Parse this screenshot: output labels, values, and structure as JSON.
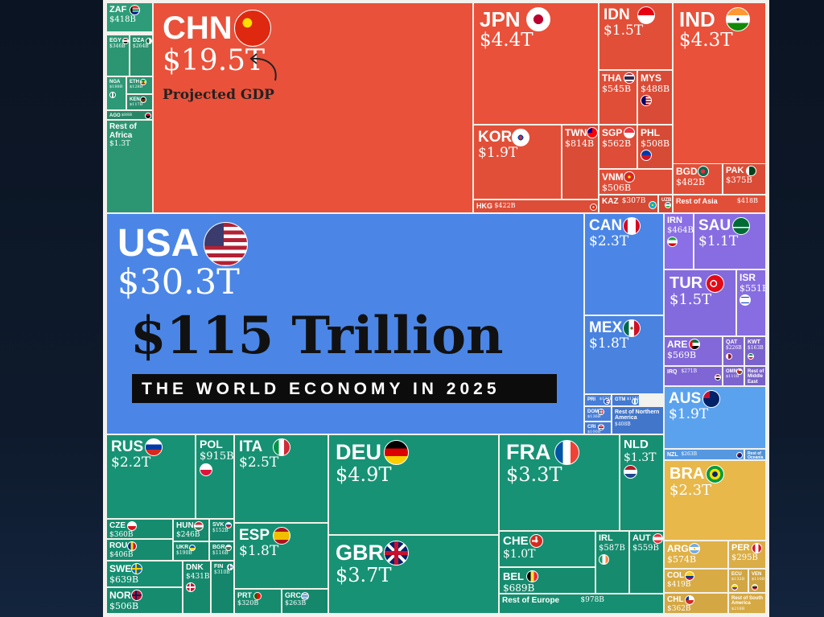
{
  "title": "$115 Trillion",
  "subtitle": "THE WORLD ECONOMY IN 2025",
  "annotation": "Projected GDP",
  "region_colors": {
    "asia": "#e9513a",
    "africa": "#2e9c78",
    "north_america": "#4b86e6",
    "europe": "#179274",
    "middle_east": "#8a6fe6",
    "oceania": "#5ba2ee",
    "south_america": "#e8b84a"
  },
  "chart_data": {
    "type": "treemap",
    "title": "$115 Trillion",
    "subtitle": "THE WORLD ECONOMY IN 2025",
    "value_unit": "USD",
    "cells": [
      {
        "code": "ZAF",
        "value": "$418B",
        "region": "africa",
        "flag": "flag-south-africa"
      },
      {
        "code": "EGY",
        "value": "$346B",
        "region": "africa",
        "flag": "flag-egypt"
      },
      {
        "code": "DZA",
        "value": "$264B",
        "region": "africa",
        "flag": "flag-algeria"
      },
      {
        "code": "NGA",
        "value": "$188B",
        "region": "africa",
        "flag": "flag-nigeria"
      },
      {
        "code": "ETH",
        "value": "$128B",
        "region": "africa",
        "flag": "flag-ethiopia"
      },
      {
        "code": "KEN",
        "value": "$117B",
        "region": "africa",
        "flag": "flag-kenya"
      },
      {
        "code": "AGO",
        "value": "$88B",
        "region": "africa",
        "flag": "flag-angola"
      },
      {
        "code": "Rest of Africa",
        "value": "$1.3T",
        "region": "africa"
      },
      {
        "code": "CHN",
        "value": "$19.5T",
        "region": "asia",
        "flag": "flag-china"
      },
      {
        "code": "JPN",
        "value": "$4.4T",
        "region": "asia",
        "flag": "flag-japan"
      },
      {
        "code": "IDN",
        "value": "$1.5T",
        "region": "asia",
        "flag": "flag-indonesia"
      },
      {
        "code": "IND",
        "value": "$4.3T",
        "region": "asia",
        "flag": "flag-india"
      },
      {
        "code": "THA",
        "value": "$545B",
        "region": "asia",
        "flag": "flag-thailand"
      },
      {
        "code": "MYS",
        "value": "$488B",
        "region": "asia",
        "flag": "flag-malaysia"
      },
      {
        "code": "KOR",
        "value": "$1.9T",
        "region": "asia",
        "flag": "flag-south-korea"
      },
      {
        "code": "TWN",
        "value": "$814B",
        "region": "asia",
        "flag": "flag-taiwan"
      },
      {
        "code": "SGP",
        "value": "$562B",
        "region": "asia",
        "flag": "flag-singapore"
      },
      {
        "code": "PHL",
        "value": "$508B",
        "region": "asia",
        "flag": "flag-philippines"
      },
      {
        "code": "VNM",
        "value": "$506B",
        "region": "asia",
        "flag": "flag-vietnam"
      },
      {
        "code": "BGD",
        "value": "$482B",
        "region": "asia",
        "flag": "flag-bangladesh"
      },
      {
        "code": "PAK",
        "value": "$375B",
        "region": "asia",
        "flag": "flag-pakistan"
      },
      {
        "code": "KAZ",
        "value": "$307B",
        "region": "asia",
        "flag": "flag-kazakhstan"
      },
      {
        "code": "UZB",
        "value": "$127B",
        "region": "asia",
        "flag": "flag-uzbekistan"
      },
      {
        "code": "HKG",
        "value": "$422B",
        "region": "asia",
        "flag": "flag-hong-kong"
      },
      {
        "code": "Rest of Asia",
        "value": "$418B",
        "region": "asia"
      },
      {
        "code": "USA",
        "value": "$30.3T",
        "region": "north_america",
        "flag": "flag-usa"
      },
      {
        "code": "CAN",
        "value": "$2.3T",
        "region": "north_america",
        "flag": "flag-canada"
      },
      {
        "code": "MEX",
        "value": "$1.8T",
        "region": "north_america",
        "flag": "flag-mexico"
      },
      {
        "code": "PRI",
        "value": "$122B",
        "region": "north_america",
        "flag": "flag-puerto-rico"
      },
      {
        "code": "GTM",
        "value": "$115B",
        "region": "north_america",
        "flag": "flag-guatemala"
      },
      {
        "code": "DOM",
        "value": "$136B",
        "region": "north_america",
        "flag": "flag-dominican-republic"
      },
      {
        "code": "CRI",
        "value": "$100B",
        "region": "north_america",
        "flag": "flag-costa-rica"
      },
      {
        "code": "Rest of Northern America",
        "value": "$408B",
        "region": "north_america"
      },
      {
        "code": "IRN",
        "value": "$464B",
        "region": "middle_east",
        "flag": "flag-iran"
      },
      {
        "code": "SAU",
        "value": "$1.1T",
        "region": "middle_east",
        "flag": "flag-saudi-arabia"
      },
      {
        "code": "TUR",
        "value": "$1.5T",
        "region": "middle_east",
        "flag": "flag-turkey"
      },
      {
        "code": "ISR",
        "value": "$551B",
        "region": "middle_east",
        "flag": "flag-israel"
      },
      {
        "code": "ARE",
        "value": "$569B",
        "region": "middle_east",
        "flag": "flag-uae"
      },
      {
        "code": "QAT",
        "value": "$226B",
        "region": "middle_east",
        "flag": "flag-qatar"
      },
      {
        "code": "KWT",
        "value": "$163B",
        "region": "middle_east",
        "flag": "flag-kuwait"
      },
      {
        "code": "IRQ",
        "value": "$271B",
        "region": "middle_east",
        "flag": "flag-iraq"
      },
      {
        "code": "OMN",
        "value": "$111B",
        "region": "middle_east",
        "flag": "flag-oman"
      },
      {
        "code": "Rest of Middle East",
        "value": "$122B",
        "region": "middle_east"
      },
      {
        "code": "AUS",
        "value": "$1.9T",
        "region": "oceania",
        "flag": "flag-australia"
      },
      {
        "code": "NZL",
        "value": "$263B",
        "region": "oceania",
        "flag": "flag-new-zealand"
      },
      {
        "code": "Rest of Oceania",
        "value": "$36B",
        "region": "oceania"
      },
      {
        "code": "BRA",
        "value": "$2.3T",
        "region": "south_america",
        "flag": "flag-brazil"
      },
      {
        "code": "ARG",
        "value": "$574B",
        "region": "south_america",
        "flag": "flag-argentina"
      },
      {
        "code": "PER",
        "value": "$295B",
        "region": "south_america",
        "flag": "flag-peru"
      },
      {
        "code": "COL",
        "value": "$419B",
        "region": "south_america",
        "flag": "flag-colombia"
      },
      {
        "code": "ECU",
        "value": "$132B",
        "region": "south_america",
        "flag": "flag-ecuador"
      },
      {
        "code": "VEN",
        "value": "$110B",
        "region": "south_america",
        "flag": "flag-venezuela"
      },
      {
        "code": "CHL",
        "value": "$362B",
        "region": "south_america",
        "flag": "flag-chile"
      },
      {
        "code": "Rest of South America",
        "value": "$218B",
        "region": "south_america"
      },
      {
        "code": "RUS",
        "value": "$2.2T",
        "region": "europe",
        "flag": "flag-russia"
      },
      {
        "code": "POL",
        "value": "$915B",
        "region": "europe",
        "flag": "flag-poland"
      },
      {
        "code": "ITA",
        "value": "$2.5T",
        "region": "europe",
        "flag": "flag-italy"
      },
      {
        "code": "DEU",
        "value": "$4.9T",
        "region": "europe",
        "flag": "flag-germany"
      },
      {
        "code": "FRA",
        "value": "$3.3T",
        "region": "europe",
        "flag": "flag-france"
      },
      {
        "code": "NLD",
        "value": "$1.3T",
        "region": "europe",
        "flag": "flag-netherlands"
      },
      {
        "code": "CZE",
        "value": "$360B",
        "region": "europe",
        "flag": "flag-czechia"
      },
      {
        "code": "HUN",
        "value": "$246B",
        "region": "europe",
        "flag": "flag-hungary"
      },
      {
        "code": "SVK",
        "value": "$152B",
        "region": "europe",
        "flag": "flag-slovakia"
      },
      {
        "code": "ROU",
        "value": "$406B",
        "region": "europe",
        "flag": "flag-romania"
      },
      {
        "code": "UKR",
        "value": "$190B",
        "region": "europe",
        "flag": "flag-ukraine"
      },
      {
        "code": "BGR",
        "value": "$116B",
        "region": "europe",
        "flag": "flag-bulgaria"
      },
      {
        "code": "SWE",
        "value": "$639B",
        "region": "europe",
        "flag": "flag-sweden"
      },
      {
        "code": "DNK",
        "value": "$431B",
        "region": "europe",
        "flag": "flag-denmark"
      },
      {
        "code": "FIN",
        "value": "$310B",
        "region": "europe",
        "flag": "flag-finland"
      },
      {
        "code": "NOR",
        "value": "$506B",
        "region": "europe",
        "flag": "flag-norway"
      },
      {
        "code": "ESP",
        "value": "$1.8T",
        "region": "europe",
        "flag": "flag-spain"
      },
      {
        "code": "PRT",
        "value": "$320B",
        "region": "europe",
        "flag": "flag-portugal"
      },
      {
        "code": "GRC",
        "value": "$263B",
        "region": "europe",
        "flag": "flag-greece"
      },
      {
        "code": "GBR",
        "value": "$3.7T",
        "region": "europe",
        "flag": "flag-united-kingdom"
      },
      {
        "code": "CHE",
        "value": "$1.0T",
        "region": "europe",
        "flag": "flag-switzerland"
      },
      {
        "code": "IRL",
        "value": "$587B",
        "region": "europe",
        "flag": "flag-ireland"
      },
      {
        "code": "AUT",
        "value": "$559B",
        "region": "europe",
        "flag": "flag-austria"
      },
      {
        "code": "BEL",
        "value": "$689B",
        "region": "europe",
        "flag": "flag-belgium"
      },
      {
        "code": "Rest of Europe",
        "value": "$978B",
        "region": "europe"
      }
    ]
  }
}
